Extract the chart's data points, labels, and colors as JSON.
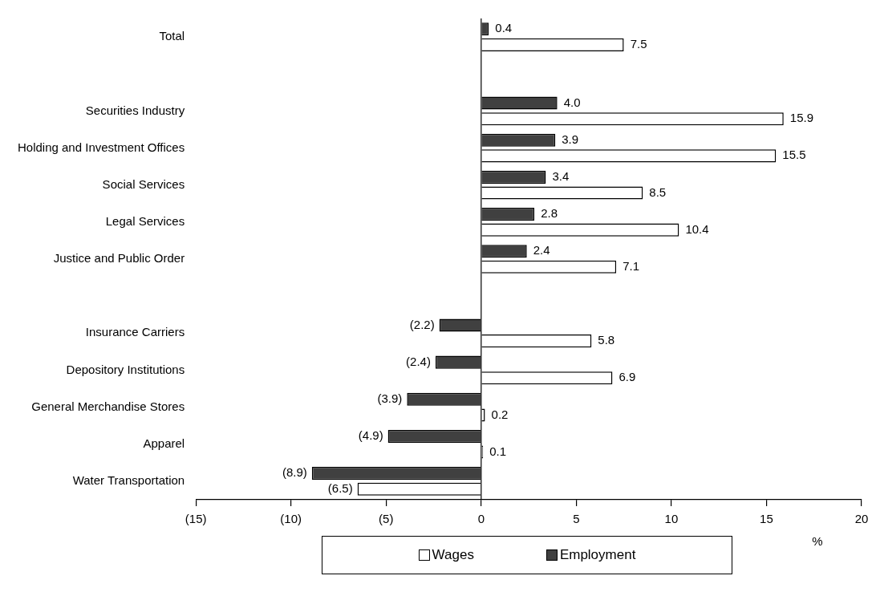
{
  "chart_data": {
    "type": "bar",
    "orientation": "horizontal",
    "xlabel": "%",
    "categories": [
      "Total",
      null,
      "Securities Industry",
      "Holding and Investment Offices",
      "Social Services",
      "Legal Services",
      "Justice and Public Order",
      null,
      "Insurance Carriers",
      "Depository Institutions",
      "General Merchandise Stores",
      "Apparel",
      "Water Transportation"
    ],
    "series": [
      {
        "name": "Employment",
        "color": "#404040",
        "values": [
          0.4,
          null,
          4.0,
          3.9,
          3.4,
          2.8,
          2.4,
          null,
          -2.2,
          -2.4,
          -3.9,
          -4.9,
          -8.9
        ],
        "value_labels": [
          "0.4",
          null,
          "4.0",
          "3.9",
          "3.4",
          "2.8",
          "2.4",
          null,
          "(2.2)",
          "(2.4)",
          "(3.9)",
          "(4.9)",
          "(8.9)"
        ]
      },
      {
        "name": "Wages",
        "color": "#ffffff",
        "values": [
          7.5,
          null,
          15.9,
          15.5,
          8.5,
          10.4,
          7.1,
          null,
          5.8,
          6.9,
          0.2,
          0.1,
          -6.5
        ],
        "value_labels": [
          "7.5",
          null,
          "15.9",
          "15.5",
          "8.5",
          "10.4",
          "7.1",
          null,
          "5.8",
          "6.9",
          "0.2",
          "0.1",
          "(6.5)"
        ]
      }
    ],
    "xlim": [
      -15,
      20
    ],
    "xticks": [
      {
        "value": -15,
        "label": "(15)"
      },
      {
        "value": -10,
        "label": "(10)"
      },
      {
        "value": -5,
        "label": "(5)"
      },
      0,
      5,
      10,
      15,
      20
    ],
    "legend": "bottom"
  }
}
